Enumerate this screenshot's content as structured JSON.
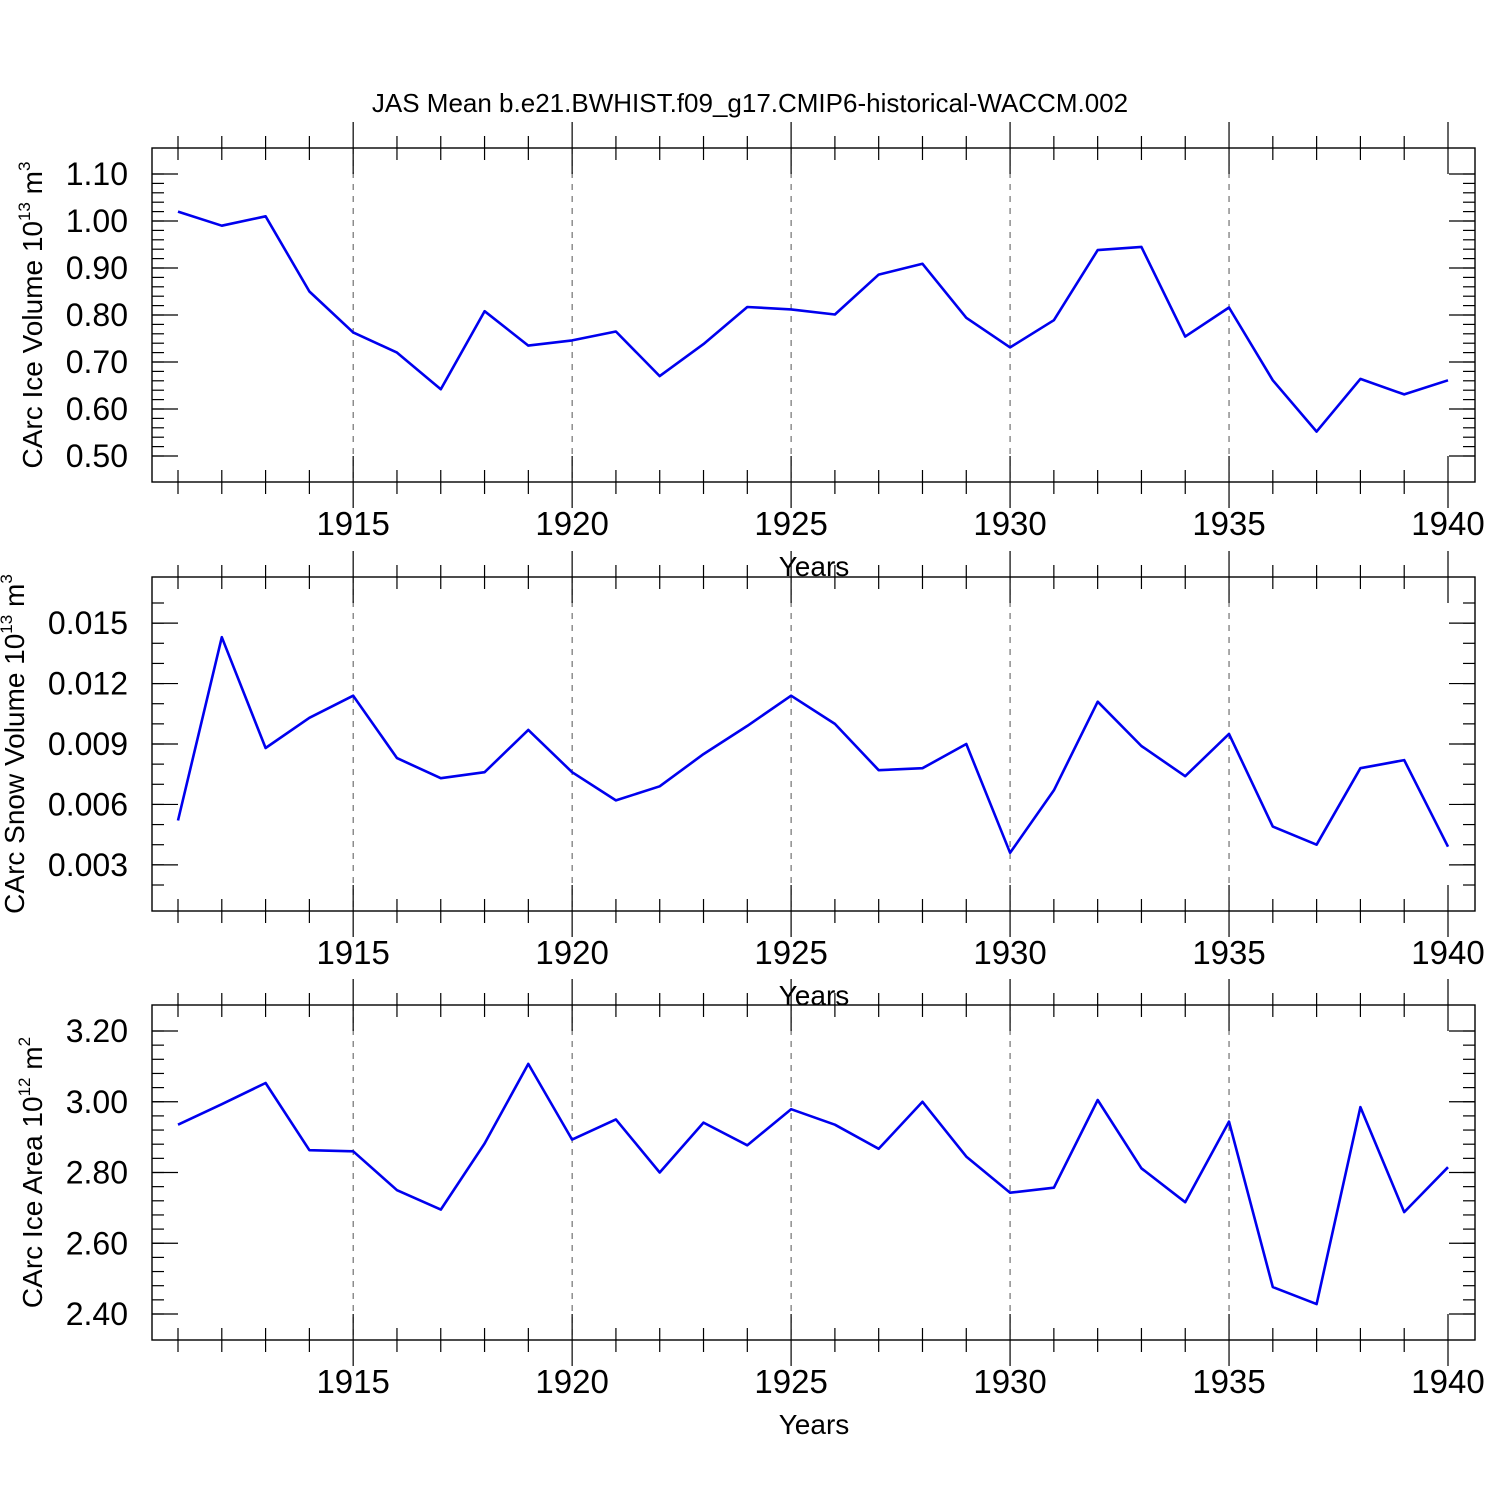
{
  "title": "JAS Mean b.e21.BWHIST.f09_g17.CMIP6-historical-WACCM.002",
  "line_color": "#0000ee",
  "chart_data": [
    {
      "type": "line",
      "ylabel": {
        "main": "CArc Ice Volume 10",
        "exponent": "13",
        "unit": " m",
        "unit_exp": "3"
      },
      "xlabel": "Years",
      "xlim": [
        1911,
        1940
      ],
      "ylim": [
        0.5,
        1.1
      ],
      "yticks": [
        0.5,
        0.6,
        0.7,
        0.8,
        0.9,
        1.0,
        1.1
      ],
      "ytick_labels": [
        "0.50",
        "0.60",
        "0.70",
        "0.80",
        "0.90",
        "1.00",
        "1.10"
      ],
      "yminor_step": 0.02,
      "xticks": [
        1915,
        1920,
        1925,
        1930,
        1935,
        1940
      ],
      "xtick_labels": [
        "1915",
        "1920",
        "1925",
        "1930",
        "1935",
        "1940"
      ],
      "grid_x": true,
      "x": [
        1911,
        1912,
        1913,
        1914,
        1915,
        1916,
        1917,
        1918,
        1919,
        1920,
        1921,
        1922,
        1923,
        1924,
        1925,
        1926,
        1927,
        1928,
        1929,
        1930,
        1931,
        1932,
        1933,
        1934,
        1935,
        1936,
        1937,
        1938,
        1939,
        1940
      ],
      "values": [
        1.02,
        0.99,
        1.01,
        0.85,
        0.763,
        0.72,
        0.642,
        0.808,
        0.735,
        0.746,
        0.765,
        0.67,
        0.738,
        0.817,
        0.812,
        0.801,
        0.886,
        0.909,
        0.794,
        0.731,
        0.789,
        0.938,
        0.945,
        0.754,
        0.816,
        0.661,
        0.552,
        0.664,
        0.631,
        0.661
      ]
    },
    {
      "type": "line",
      "ylabel": {
        "main": "CArc Snow Volume 10",
        "exponent": "13",
        "unit": " m",
        "unit_exp": "3"
      },
      "xlabel": "Years",
      "xlim": [
        1911,
        1940
      ],
      "ylim": [
        0.002,
        0.016
      ],
      "yticks": [
        0.003,
        0.006,
        0.009,
        0.012,
        0.015
      ],
      "ytick_labels": [
        "0.003",
        "0.006",
        "0.009",
        "0.012",
        "0.015"
      ],
      "yminor_step": 0.001,
      "xticks": [
        1915,
        1920,
        1925,
        1930,
        1935,
        1940
      ],
      "xtick_labels": [
        "1915",
        "1920",
        "1925",
        "1930",
        "1935",
        "1940"
      ],
      "grid_x": true,
      "x": [
        1911,
        1912,
        1913,
        1914,
        1915,
        1916,
        1917,
        1918,
        1919,
        1920,
        1921,
        1922,
        1923,
        1924,
        1925,
        1926,
        1927,
        1928,
        1929,
        1930,
        1931,
        1932,
        1933,
        1934,
        1935,
        1936,
        1937,
        1938,
        1939,
        1940
      ],
      "values": [
        0.0052,
        0.0143,
        0.0088,
        0.0103,
        0.0114,
        0.0083,
        0.0073,
        0.0076,
        0.0097,
        0.0076,
        0.0062,
        0.0069,
        0.0085,
        0.0099,
        0.0114,
        0.01,
        0.0077,
        0.0078,
        0.009,
        0.0036,
        0.0067,
        0.0111,
        0.0089,
        0.0074,
        0.0095,
        0.0049,
        0.004,
        0.0078,
        0.0082,
        0.0039
      ]
    },
    {
      "type": "line",
      "ylabel": {
        "main": "CArc Ice Area 10",
        "exponent": "12",
        "unit": " m",
        "unit_exp": "2"
      },
      "xlabel": "Years",
      "xlim": [
        1911,
        1940
      ],
      "ylim": [
        2.4,
        3.2
      ],
      "yticks": [
        2.4,
        2.6,
        2.8,
        3.0,
        3.2
      ],
      "ytick_labels": [
        "2.40",
        "2.60",
        "2.80",
        "3.00",
        "3.20"
      ],
      "yminor_step": 0.04,
      "xticks": [
        1915,
        1920,
        1925,
        1930,
        1935,
        1940
      ],
      "xtick_labels": [
        "1915",
        "1920",
        "1925",
        "1930",
        "1935",
        "1940"
      ],
      "grid_x": true,
      "x": [
        1911,
        1912,
        1913,
        1914,
        1915,
        1916,
        1917,
        1918,
        1919,
        1920,
        1921,
        1922,
        1923,
        1924,
        1925,
        1926,
        1927,
        1928,
        1929,
        1930,
        1931,
        1932,
        1933,
        1934,
        1935,
        1936,
        1937,
        1938,
        1939,
        1940
      ],
      "values": [
        2.935,
        2.993,
        3.053,
        2.863,
        2.86,
        2.75,
        2.695,
        2.882,
        3.107,
        2.893,
        2.95,
        2.8,
        2.941,
        2.877,
        2.979,
        2.935,
        2.867,
        3.0,
        2.845,
        2.743,
        2.757,
        3.005,
        2.812,
        2.716,
        2.944,
        2.476,
        2.428,
        2.985,
        2.688,
        2.815
      ]
    }
  ]
}
